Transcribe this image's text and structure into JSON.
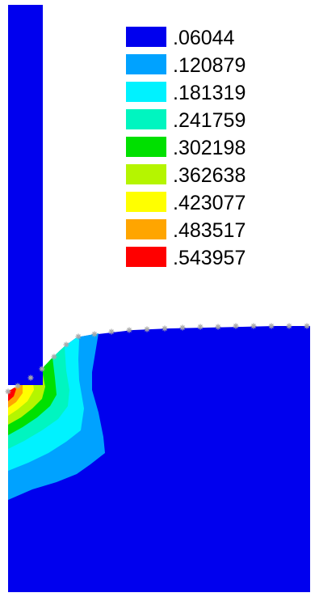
{
  "legend": {
    "entries": [
      {
        "label": ".06044",
        "color": "#0000ee"
      },
      {
        "label": ".120879",
        "color": "#00a2ff"
      },
      {
        "label": ".181319",
        "color": "#00f2ff"
      },
      {
        "label": ".241759",
        "color": "#00f5c0"
      },
      {
        "label": ".302198",
        "color": "#00e000"
      },
      {
        "label": ".362638",
        "color": "#b5f500"
      },
      {
        "label": ".423077",
        "color": "#ffff00"
      },
      {
        "label": ".483517",
        "color": "#ffa500"
      },
      {
        "label": ".543957",
        "color": "#ff0000"
      }
    ]
  },
  "colors": {
    "background": "#ffffff",
    "base_field": "#0000ee",
    "mesh_marker": "#aaaaaa"
  }
}
